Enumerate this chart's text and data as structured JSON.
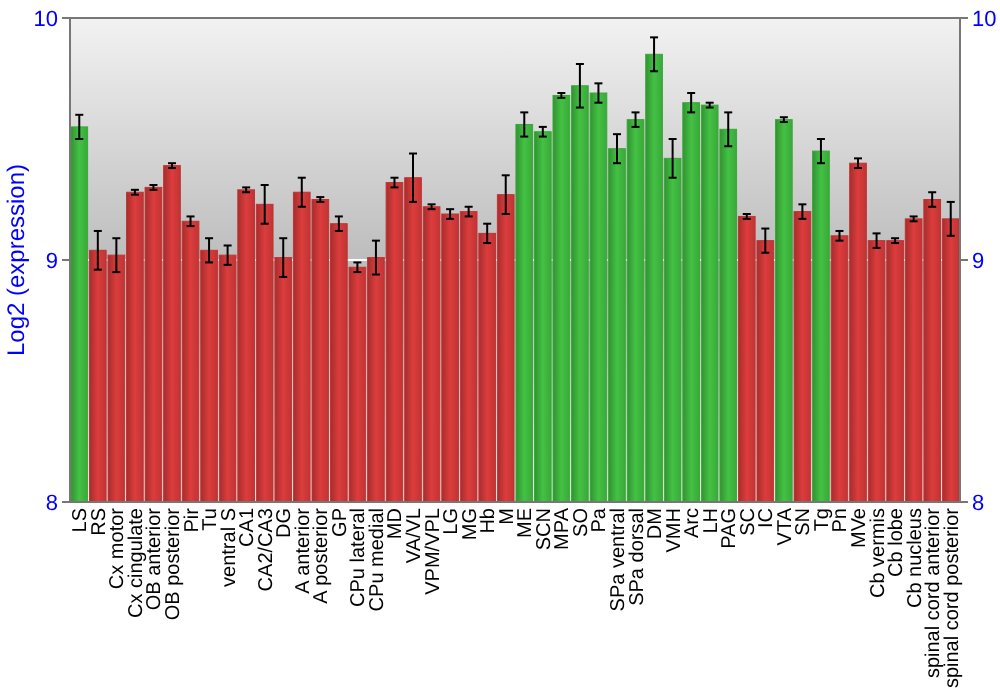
{
  "chart_data": {
    "type": "bar",
    "ylabel": "Log2 (expression)",
    "categories": [
      "LS",
      "RS",
      "Cx motor",
      "Cx cingulate",
      "OB anterior",
      "OB posterior",
      "Pir",
      "Tu",
      "ventral S",
      "CA1",
      "CA2/CA3",
      "DG",
      "A anterior",
      "A posterior",
      "GP",
      "CPu lateral",
      "CPu medial",
      "MD",
      "VA/VL",
      "VPM/VPL",
      "LG",
      "MG",
      "Hb",
      "M",
      "ME",
      "SCN",
      "MPA",
      "SO",
      "Pa",
      "SPa ventral",
      "SPa dorsal",
      "DM",
      "VMH",
      "Arc",
      "LH",
      "PAG",
      "SC",
      "IC",
      "VTA",
      "SN",
      "Tg",
      "Pn",
      "MVe",
      "Cb vermis",
      "Cb lobe",
      "Cb nucleus",
      "spinal cord anterior",
      "spinal cord posterior"
    ],
    "values": [
      9.55,
      9.04,
      9.02,
      9.28,
      9.3,
      9.39,
      9.16,
      9.04,
      9.02,
      9.29,
      9.23,
      9.01,
      9.28,
      9.25,
      9.15,
      8.97,
      9.01,
      9.32,
      9.34,
      9.22,
      9.19,
      9.2,
      9.11,
      9.27,
      9.56,
      9.53,
      9.68,
      9.72,
      9.69,
      9.46,
      9.58,
      9.85,
      9.42,
      9.65,
      9.64,
      9.54,
      9.18,
      9.08,
      9.58,
      9.2,
      9.45,
      9.1,
      9.4,
      9.08,
      9.08,
      9.17,
      9.25,
      9.17
    ],
    "errors": [
      0.05,
      0.08,
      0.07,
      0.01,
      0.01,
      0.01,
      0.02,
      0.05,
      0.04,
      0.01,
      0.08,
      0.08,
      0.06,
      0.01,
      0.03,
      0.02,
      0.07,
      0.02,
      0.1,
      0.01,
      0.02,
      0.02,
      0.04,
      0.08,
      0.05,
      0.02,
      0.01,
      0.09,
      0.04,
      0.06,
      0.03,
      0.07,
      0.08,
      0.04,
      0.01,
      0.07,
      0.01,
      0.05,
      0.01,
      0.03,
      0.05,
      0.02,
      0.02,
      0.03,
      0.01,
      0.01,
      0.03,
      0.07
    ],
    "colors": [
      "#3aa83a",
      "#c03434",
      "#c03434",
      "#c03434",
      "#c03434",
      "#c03434",
      "#c03434",
      "#c03434",
      "#c03434",
      "#c03434",
      "#c03434",
      "#c03434",
      "#c03434",
      "#c03434",
      "#c03434",
      "#c03434",
      "#c03434",
      "#c03434",
      "#c03434",
      "#c03434",
      "#c03434",
      "#c03434",
      "#c03434",
      "#c03434",
      "#3aa83a",
      "#3aa83a",
      "#3aa83a",
      "#3aa83a",
      "#3aa83a",
      "#3aa83a",
      "#3aa83a",
      "#3aa83a",
      "#3aa83a",
      "#3aa83a",
      "#3aa83a",
      "#3aa83a",
      "#c03434",
      "#c03434",
      "#3aa83a",
      "#c03434",
      "#3aa83a",
      "#c03434",
      "#c03434",
      "#c03434",
      "#c03434",
      "#c03434",
      "#c03434",
      "#c03434"
    ],
    "ylim": [
      8,
      10
    ],
    "yticks": [
      8,
      9,
      10
    ],
    "y2lim": [
      8,
      10
    ],
    "y2ticks": [
      8,
      9,
      10
    ],
    "grid": "y"
  }
}
